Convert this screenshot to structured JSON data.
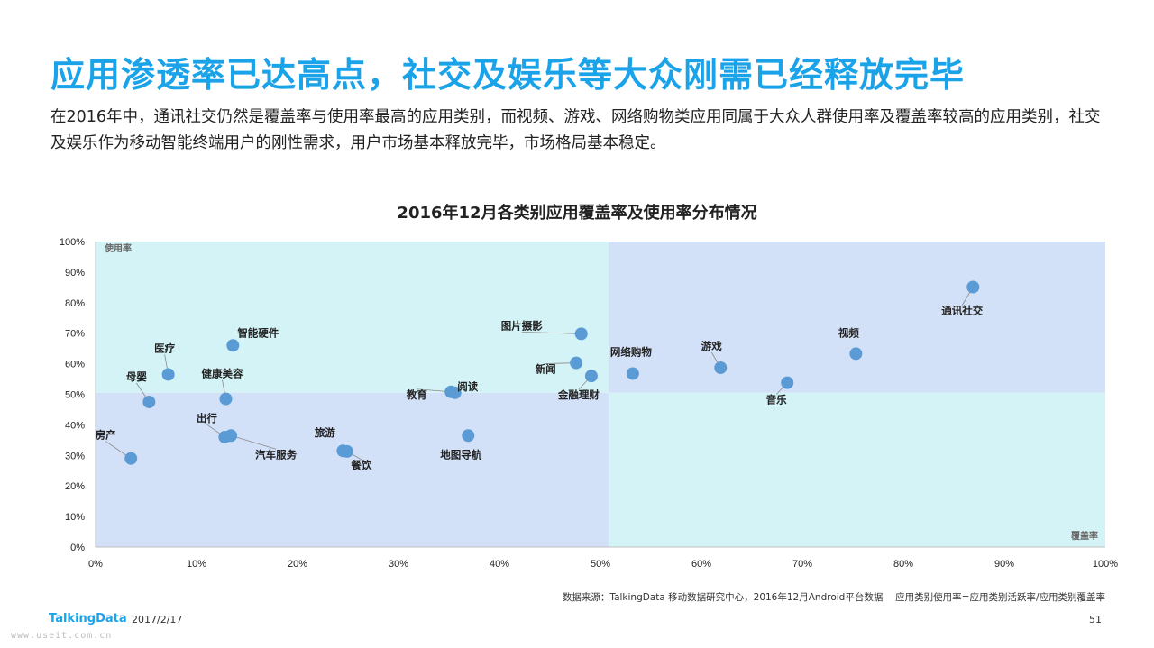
{
  "page": {
    "title": "应用渗透率已达高点，社交及娱乐等大众刚需已经释放完毕",
    "subtitle": "在2016年中，通讯社交仍然是覆盖率与使用率最高的应用类别，而视频、游戏、网络购物类应用同属于大众人群使用率及覆盖率较高的应用类别，社交及娱乐作为移动智能终端用户的刚性需求，用户市场基本释放完毕，市场格局基本稳定。",
    "title_color": "#1aa3e8"
  },
  "chart_data": {
    "type": "scatter",
    "title": "2016年12月各类别应用覆盖率及使用率分布情况",
    "xlabel": "覆盖率",
    "ylabel": "使用率",
    "xlim": [
      0,
      100
    ],
    "ylim": [
      0,
      100
    ],
    "x_ticks": [
      "0%",
      "10%",
      "20%",
      "30%",
      "40%",
      "50%",
      "60%",
      "70%",
      "80%",
      "90%",
      "100%"
    ],
    "y_ticks": [
      "0%",
      "10%",
      "20%",
      "30%",
      "40%",
      "50%",
      "60%",
      "70%",
      "80%",
      "90%",
      "100%"
    ],
    "quadrant_split": {
      "x": 50.8,
      "y": 50.5
    },
    "colors": {
      "quadrant_light": "#d4f3f6",
      "quadrant_blue": "#d3e1f8",
      "point": "#5b9bd5"
    },
    "grid": false,
    "legend": "none",
    "points": [
      {
        "label": "房产",
        "x": 3.5,
        "y": 29
      },
      {
        "label": "母婴",
        "x": 5.3,
        "y": 47.5
      },
      {
        "label": "医疗",
        "x": 7.2,
        "y": 56.5
      },
      {
        "label": "智能硬件",
        "x": 13.6,
        "y": 66
      },
      {
        "label": "健康美容",
        "x": 12.9,
        "y": 48.5
      },
      {
        "label": "出行",
        "x": 12.8,
        "y": 36
      },
      {
        "label": "汽车服务",
        "x": 13.4,
        "y": 36.5
      },
      {
        "label": "旅游",
        "x": 24.5,
        "y": 31.5
      },
      {
        "label": "餐饮",
        "x": 24.9,
        "y": 31.3
      },
      {
        "label": "教育",
        "x": 35.2,
        "y": 50.8
      },
      {
        "label": "阅读",
        "x": 35.6,
        "y": 50.5
      },
      {
        "label": "地图导航",
        "x": 36.9,
        "y": 36.5
      },
      {
        "label": "图片摄影",
        "x": 48.1,
        "y": 69.8
      },
      {
        "label": "新闻",
        "x": 47.6,
        "y": 60.3
      },
      {
        "label": "金融理财",
        "x": 49.1,
        "y": 56
      },
      {
        "label": "网络购物",
        "x": 53.2,
        "y": 56.8
      },
      {
        "label": "游戏",
        "x": 61.9,
        "y": 58.7
      },
      {
        "label": "音乐",
        "x": 68.5,
        "y": 53.8
      },
      {
        "label": "视频",
        "x": 75.3,
        "y": 63.3
      },
      {
        "label": "通讯社交",
        "x": 86.9,
        "y": 85.1
      }
    ]
  },
  "footer": {
    "source": "数据来源：TalkingData 移动数据研究中心，2016年12月Android平台数据　 应用类别使用率=应用类别活跃率/应用类别覆盖率",
    "logo": "TalkingData",
    "date": "2017/2/17",
    "page_number": "51",
    "watermark": "www.useit.com.cn"
  }
}
